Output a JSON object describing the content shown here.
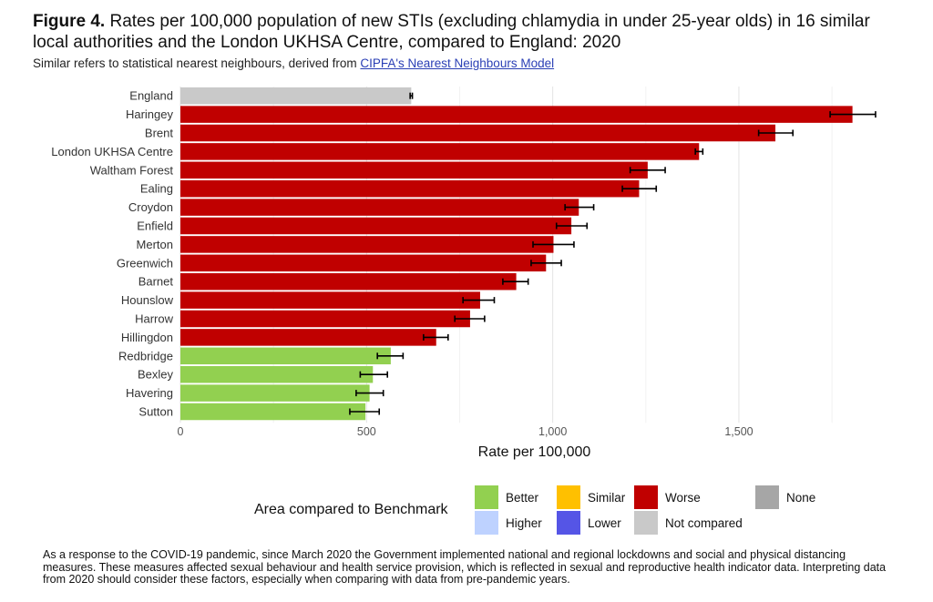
{
  "figure": {
    "label": "Figure 4.",
    "title": "Rates per 100,000 population of new STIs (excluding chlamydia in under 25-year olds) in 16 similar local authorities and the London UKHSA Centre, compared to England: 2020",
    "subtitle_prefix": "Similar refers to statistical nearest neighbours, derived from",
    "subtitle_link": "CIPFA's Nearest Neighbours Model"
  },
  "colors": {
    "Better": "#92d050",
    "Similar": "#ffc000",
    "Worse": "#c00000",
    "None": "#a6a6a6",
    "Higher": "#bed2ff",
    "Lower": "#5555e6",
    "Not compared": "#c9c9c9"
  },
  "legend": {
    "title": "Area compared to Benchmark",
    "items": [
      "Better",
      "Similar",
      "Worse",
      "None",
      "Higher",
      "Lower",
      "Not compared"
    ]
  },
  "chart_data": {
    "type": "bar",
    "orientation": "horizontal",
    "xlabel": "Rate per 100,000",
    "xlim": [
      0,
      1850
    ],
    "xticks": [
      0,
      500,
      1000,
      1500
    ],
    "xtick_labels": [
      "0",
      "500",
      "1,000",
      "1,500"
    ],
    "grid": true,
    "error_bars": true,
    "categories": [
      "England",
      "Haringey",
      "Brent",
      "London UKHSA Centre",
      "Waltham Forest",
      "Ealing",
      "Croydon",
      "Enfield",
      "Merton",
      "Greenwich",
      "Barnet",
      "Hounslow",
      "Harrow",
      "Hillingdon",
      "Redbridge",
      "Bexley",
      "Havering",
      "Sutton"
    ],
    "values": [
      620,
      1805,
      1598,
      1393,
      1255,
      1232,
      1070,
      1050,
      1002,
      982,
      902,
      805,
      778,
      687,
      565,
      517,
      508,
      497
    ],
    "ci_low": [
      617,
      1745,
      1553,
      1383,
      1208,
      1187,
      1033,
      1010,
      947,
      942,
      866,
      759,
      737,
      653,
      529,
      483,
      472,
      455
    ],
    "ci_high": [
      623,
      1867,
      1645,
      1403,
      1302,
      1278,
      1110,
      1092,
      1057,
      1023,
      934,
      843,
      817,
      719,
      598,
      556,
      545,
      534
    ],
    "comparison": [
      "Not compared",
      "Worse",
      "Worse",
      "Worse",
      "Worse",
      "Worse",
      "Worse",
      "Worse",
      "Worse",
      "Worse",
      "Worse",
      "Worse",
      "Worse",
      "Worse",
      "Better",
      "Better",
      "Better",
      "Better"
    ]
  },
  "footnote": "As a response to the COVID-19 pandemic, since March 2020 the Government implemented national and regional lockdowns and social and physical distancing measures. These measures affected sexual behaviour and health service provision, which is reflected in sexual and reproductive health indicator data. Interpreting data from 2020 should consider these factors, especially when comparing with data from pre-pandemic years."
}
